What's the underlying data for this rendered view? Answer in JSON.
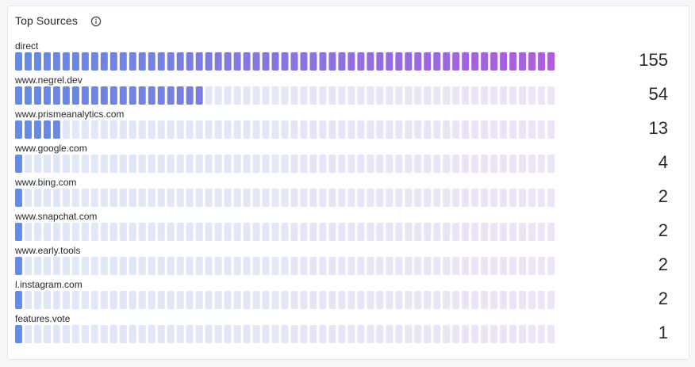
{
  "panel": {
    "title": "Top Sources",
    "info_icon": "info-icon"
  },
  "colors": {
    "lit_start": "#5b86e5",
    "lit_end": "#a855d9",
    "unlit_start": "#dde7f8",
    "unlit_end": "#ede4f6",
    "text": "#24292e"
  },
  "chart_data": {
    "type": "bar",
    "title": "Top Sources",
    "categories": [
      "direct",
      "www.negrel.dev",
      "www.prismeanalytics.com",
      "www.google.com",
      "www.bing.com",
      "www.snapchat.com",
      "www.early.tools",
      "l.instagram.com",
      "features.vote"
    ],
    "values": [
      155,
      54,
      13,
      4,
      2,
      2,
      2,
      2,
      1
    ],
    "max": 155,
    "segments": 57
  }
}
